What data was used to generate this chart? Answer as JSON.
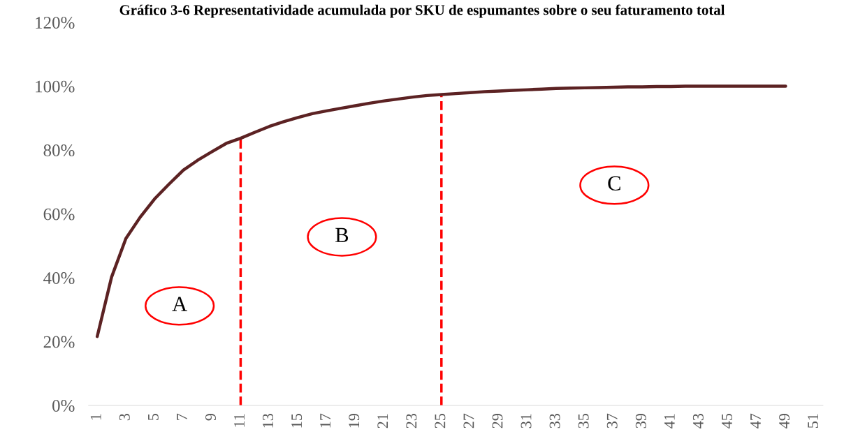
{
  "chart_data": {
    "type": "line",
    "title": "Gráfico 3-6 Representatividade acumulada por SKU de espumantes sobre o seu faturamento total",
    "categories": [
      "1",
      null,
      "3",
      null,
      "5",
      null,
      "7",
      null,
      "9",
      null,
      "11",
      null,
      "13",
      null,
      "15",
      null,
      "17",
      null,
      "19",
      null,
      "21",
      null,
      "23",
      null,
      "25",
      null,
      "27",
      null,
      "29",
      null,
      "31",
      null,
      "33",
      null,
      "35",
      null,
      "37",
      null,
      "39",
      null,
      "41",
      null,
      "43",
      null,
      "45",
      null,
      "47",
      null,
      "49",
      null,
      "51"
    ],
    "series": [
      {
        "color": "#5c2223",
        "values": [
          21.6,
          40.2,
          52.3,
          59,
          64.7,
          69.3,
          73.7,
          76.8,
          79.5,
          82.1,
          83.7,
          85.6,
          87.4,
          88.9,
          90.2,
          91.4,
          92.3,
          93.1,
          93.9,
          94.7,
          95.4,
          96,
          96.6,
          97.1,
          97.4,
          97.7,
          98,
          98.3,
          98.5,
          98.7,
          98.9,
          99.1,
          99.3,
          99.4,
          99.5,
          99.6,
          99.7,
          99.8,
          99.8,
          99.9,
          99.9,
          100,
          100,
          100,
          100,
          100,
          100,
          100,
          100,
          null,
          null
        ]
      }
    ],
    "ylim": [
      0,
      120
    ],
    "yticks": [
      {
        "value": 0,
        "label": "0%"
      },
      {
        "value": 20,
        "label": "20%"
      },
      {
        "value": 40,
        "label": "40%"
      },
      {
        "value": 60,
        "label": "60%"
      },
      {
        "value": 80,
        "label": "80%"
      },
      {
        "value": 100,
        "label": "100%"
      },
      {
        "value": 120,
        "label": "120%"
      }
    ],
    "ref_lines": [
      {
        "axis": "x",
        "value": "11",
        "color": "#ff0000",
        "line_style": "dashed"
      },
      {
        "axis": "x",
        "value": "25",
        "color": "#ff0000",
        "line_style": "dashed"
      }
    ],
    "annotations": [
      "A",
      "B",
      "C"
    ],
    "grid": false,
    "legend": false,
    "marker": "none",
    "line_style": "solid"
  }
}
